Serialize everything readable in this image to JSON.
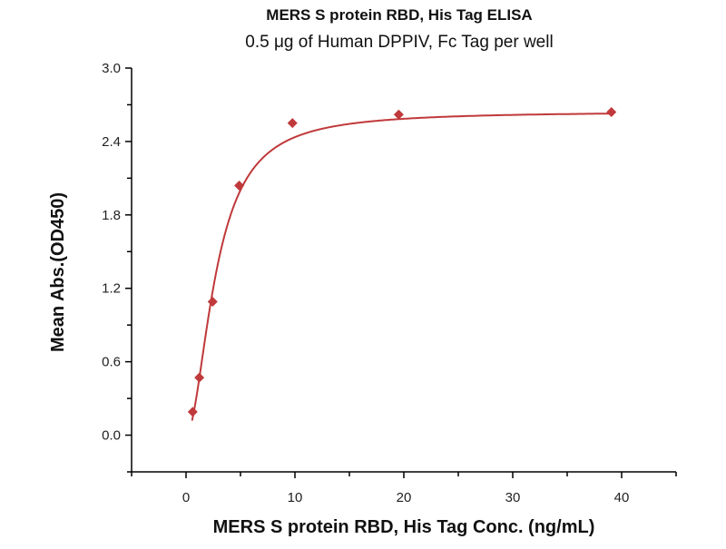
{
  "chart_data": {
    "type": "scatter",
    "title": "MERS S protein RBD, His Tag ELISA",
    "subtitle": "0.5 μg of Human DPPIV, Fc Tag per well",
    "xlabel": "MERS S protein RBD, His Tag Conc. (ng/mL)",
    "ylabel": "Mean Abs.(OD450)",
    "xlim": [
      -5,
      45
    ],
    "ylim": [
      -0.3,
      3.0
    ],
    "xticks": [
      0,
      10,
      20,
      30,
      40
    ],
    "xtick_labels": [
      "0",
      "10",
      "20",
      "30",
      "40"
    ],
    "yticks": [
      0.0,
      0.6,
      1.2,
      1.8,
      2.4,
      3.0
    ],
    "ytick_labels": [
      "0.0",
      "0.6",
      "1.2",
      "1.8",
      "2.4",
      "3.0"
    ],
    "grid": false,
    "fit": "sigmoidal curve",
    "color": "#c0393b",
    "series": [
      {
        "x": [
          0.61,
          1.22,
          2.44,
          4.88,
          9.77,
          19.53,
          39.06
        ],
        "y": [
          0.19,
          0.47,
          1.09,
          2.04,
          2.55,
          2.62,
          2.64
        ]
      }
    ]
  }
}
